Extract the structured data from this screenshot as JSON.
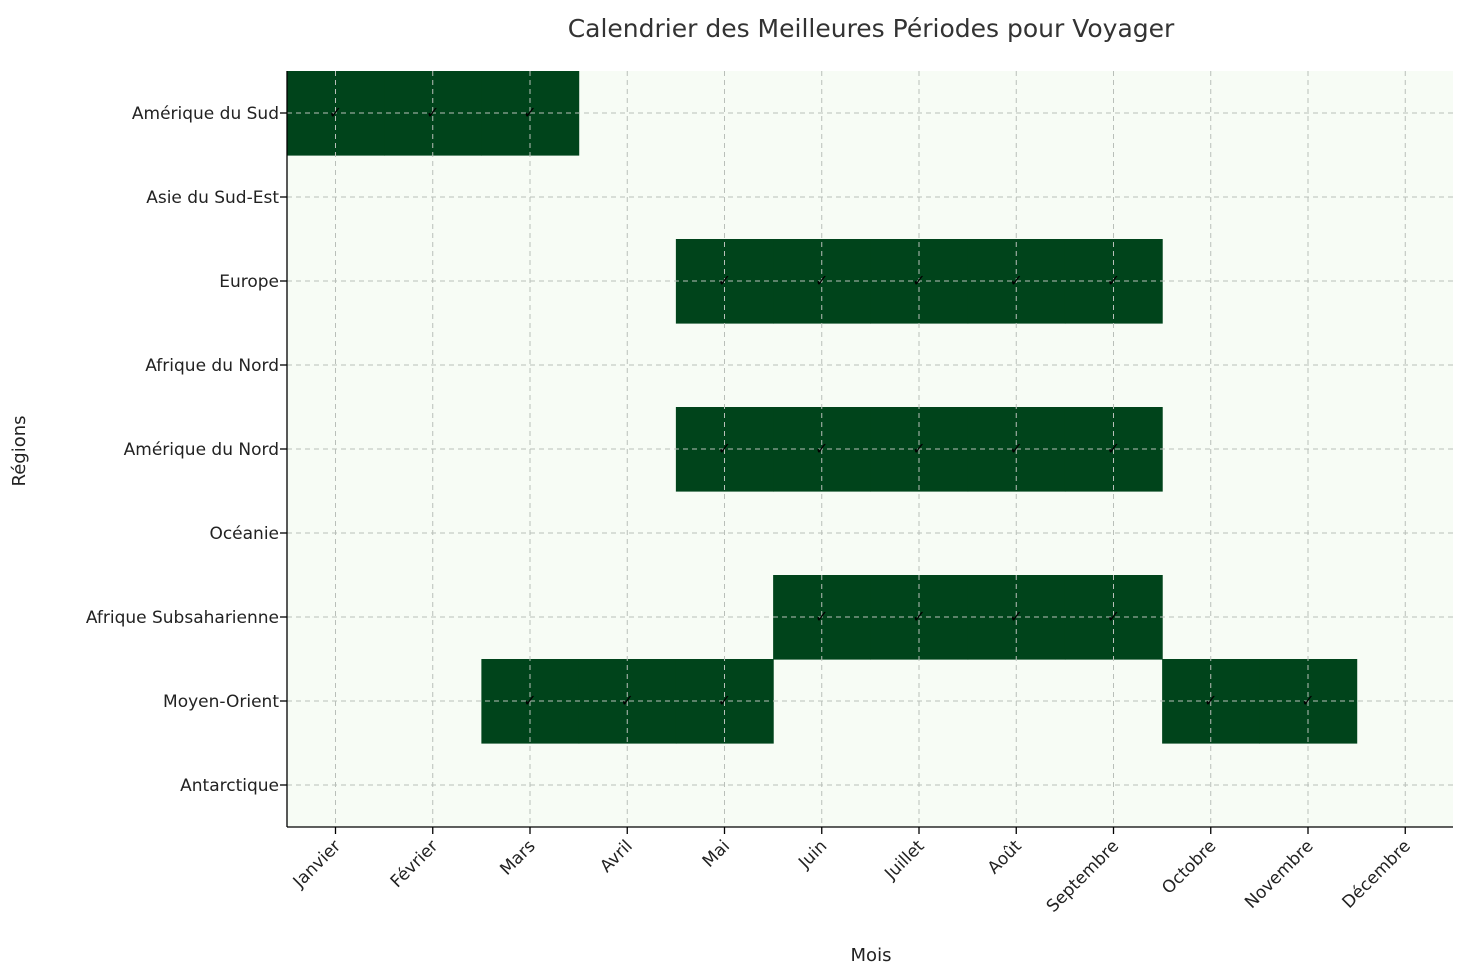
{
  "chart_data": {
    "type": "heatmap",
    "title": "Calendrier des Meilleures Périodes pour Voyager",
    "xlabel": "Mois",
    "ylabel": "Régions",
    "months": [
      "Janvier",
      "Février",
      "Mars",
      "Avril",
      "Mai",
      "Juin",
      "Juillet",
      "Août",
      "Septembre",
      "Octobre",
      "Novembre",
      "Décembre"
    ],
    "regions": [
      "Amérique du Sud",
      "Asie du Sud-Est",
      "Europe",
      "Afrique du Nord",
      "Amérique du Nord",
      "Océanie",
      "Afrique Subsaharienne",
      "Moyen-Orient",
      "Antarctique"
    ],
    "values": [
      [
        1,
        1,
        1,
        0,
        0,
        0,
        0,
        0,
        0,
        0,
        0,
        0
      ],
      [
        0,
        0,
        0,
        0,
        0,
        0,
        0,
        0,
        0,
        0,
        0,
        0
      ],
      [
        0,
        0,
        0,
        0,
        1,
        1,
        1,
        1,
        1,
        0,
        0,
        0
      ],
      [
        0,
        0,
        0,
        0,
        0,
        0,
        0,
        0,
        0,
        0,
        0,
        0
      ],
      [
        0,
        0,
        0,
        0,
        1,
        1,
        1,
        1,
        1,
        0,
        0,
        0
      ],
      [
        0,
        0,
        0,
        0,
        0,
        0,
        0,
        0,
        0,
        0,
        0,
        0
      ],
      [
        0,
        0,
        0,
        0,
        0,
        1,
        1,
        1,
        1,
        0,
        0,
        0
      ],
      [
        0,
        0,
        1,
        1,
        1,
        0,
        0,
        0,
        0,
        1,
        1,
        0
      ],
      [
        0,
        0,
        0,
        0,
        0,
        0,
        0,
        0,
        0,
        0,
        0,
        0
      ]
    ],
    "marker": "✓",
    "grid": true,
    "colors": {
      "best": "#00441b",
      "other": "#f7fcf5"
    }
  }
}
